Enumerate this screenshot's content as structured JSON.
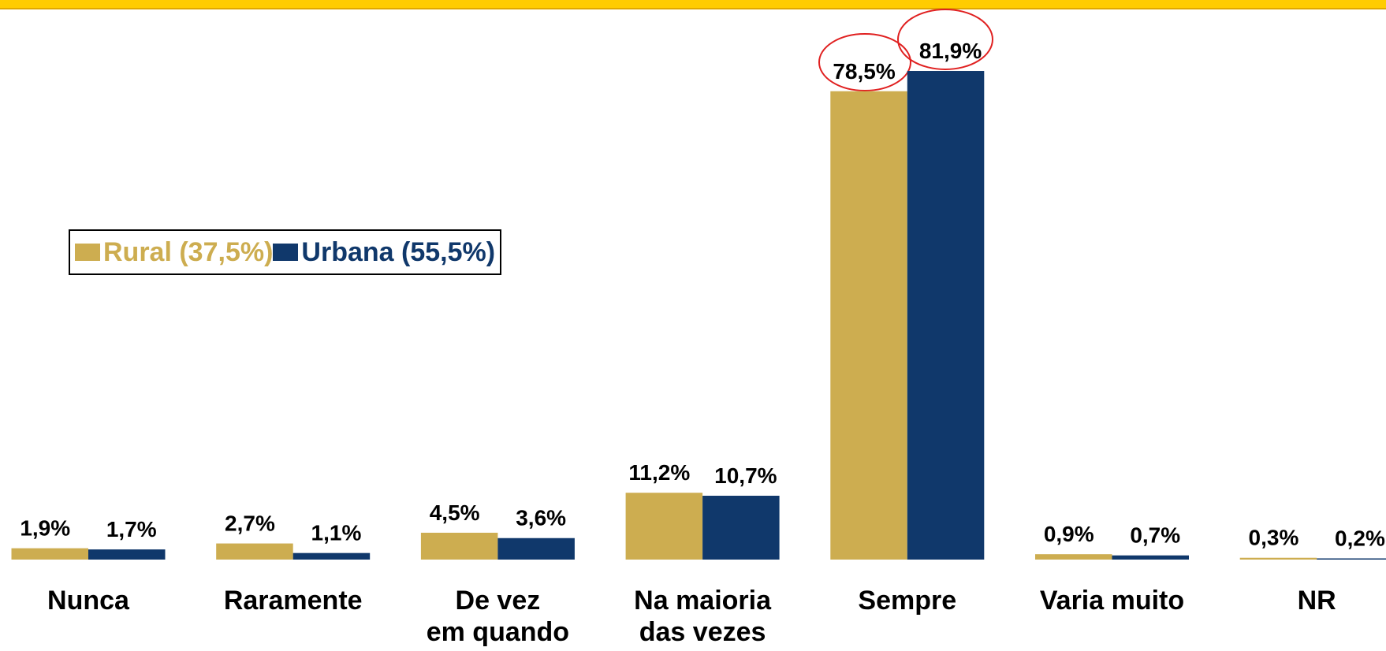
{
  "chart_data": {
    "type": "bar",
    "categories": [
      "Nunca",
      "Raramente",
      "De vez\nem quando",
      "Na maioria\ndas vezes",
      "Sempre",
      "Varia muito",
      "NR"
    ],
    "series": [
      {
        "name": "Rural (37,5%)",
        "color": "#cdad50",
        "values": [
          1.9,
          2.7,
          4.5,
          11.2,
          78.5,
          0.9,
          0.3
        ],
        "value_labels": [
          "1,9%",
          "2,7%",
          "4,5%",
          "11,2%",
          "78,5%",
          "0,9%",
          "0,3%"
        ]
      },
      {
        "name": "Urbana (55,5%)",
        "color": "#10386b",
        "values": [
          1.7,
          1.1,
          3.6,
          10.7,
          81.9,
          0.7,
          0.2
        ],
        "value_labels": [
          "1,7%",
          "1,1%",
          "3,6%",
          "10,7%",
          "81,9%",
          "0,7%",
          "0,2%"
        ]
      }
    ]
  }
}
